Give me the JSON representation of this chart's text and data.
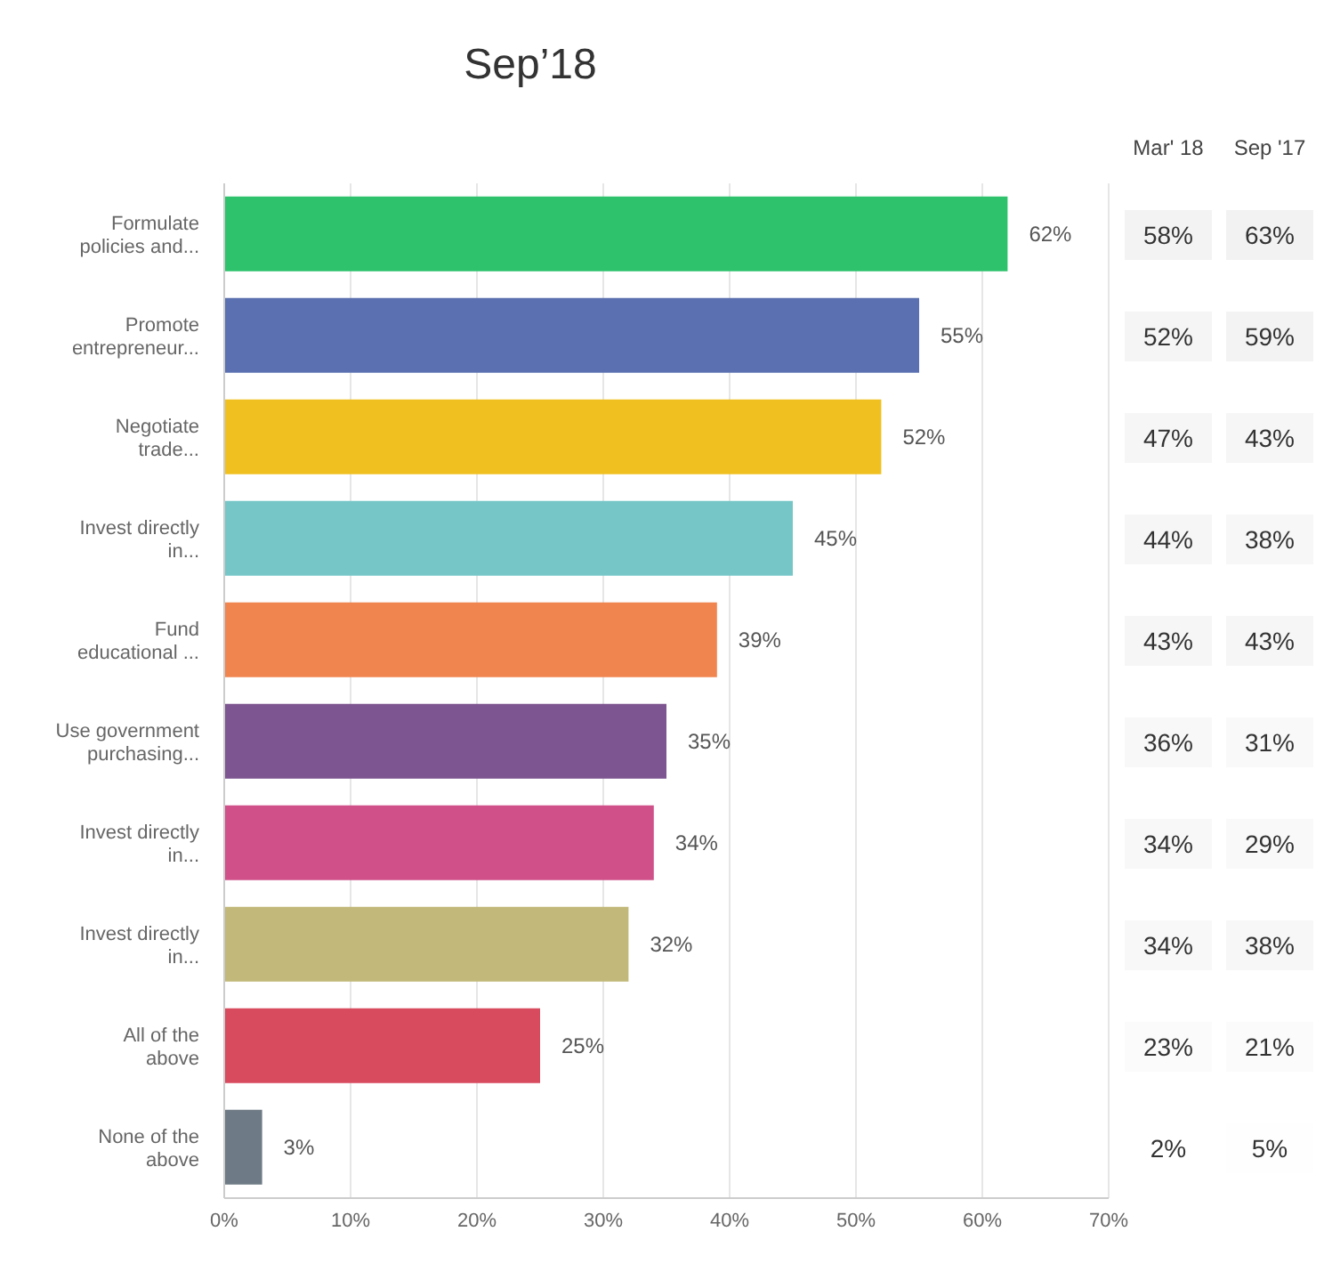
{
  "chart_data": [
    {
      "type": "bar",
      "title": "Sep’18",
      "orientation": "horizontal",
      "categories": [
        "Formulate policies and...",
        "Promote entrepreneur...",
        "Negotiate trade...",
        "Invest directly in...",
        "Fund educational ...",
        "Use government purchasing...",
        "Invest directly in...",
        "Invest directly in...",
        "All of the above",
        "None of the above"
      ],
      "values": [
        62,
        55,
        52,
        45,
        39,
        35,
        34,
        32,
        25,
        3
      ],
      "value_labels": [
        "62%",
        "55%",
        "52%",
        "45%",
        "39%",
        "35%",
        "34%",
        "32%",
        "25%",
        "3%"
      ],
      "colors": [
        "#2dc26b",
        "#5b70b0",
        "#f0c020",
        "#76c6c8",
        "#f08550",
        "#7d5590",
        "#d0508a",
        "#c2b87a",
        "#d84a5e",
        "#6e7a85"
      ],
      "xlim": [
        0,
        70
      ],
      "xticks": [
        {
          "value": 0,
          "label": "0%"
        },
        {
          "value": 10,
          "label": "10%"
        },
        {
          "value": 20,
          "label": "20%"
        },
        {
          "value": 30,
          "label": "30%"
        },
        {
          "value": 40,
          "label": "40%"
        },
        {
          "value": 50,
          "label": "50%"
        },
        {
          "value": 60,
          "label": "60%"
        },
        {
          "value": 70,
          "label": "70%"
        }
      ],
      "grid": "x"
    },
    {
      "type": "heatmap",
      "categories": [
        "Mar' 18",
        "Sep '17"
      ],
      "y_categories": [
        null,
        null,
        null,
        null,
        null,
        null,
        null,
        null,
        null,
        null
      ],
      "cells": [
        [
          58,
          63
        ],
        [
          52,
          59
        ],
        [
          47,
          43
        ],
        [
          44,
          38
        ],
        [
          43,
          43
        ],
        [
          36,
          31
        ],
        [
          34,
          29
        ],
        [
          34,
          38
        ],
        [
          23,
          21
        ],
        [
          2,
          5
        ]
      ],
      "cell_labels": [
        [
          "58%",
          "63%"
        ],
        [
          "52%",
          "59%"
        ],
        [
          "47%",
          "43%"
        ],
        [
          "44%",
          "38%"
        ],
        [
          "43%",
          "43%"
        ],
        [
          "36%",
          "31%"
        ],
        [
          "34%",
          "29%"
        ],
        [
          "34%",
          "38%"
        ],
        [
          "23%",
          "21%"
        ],
        [
          "2%",
          "5%"
        ]
      ]
    }
  ]
}
